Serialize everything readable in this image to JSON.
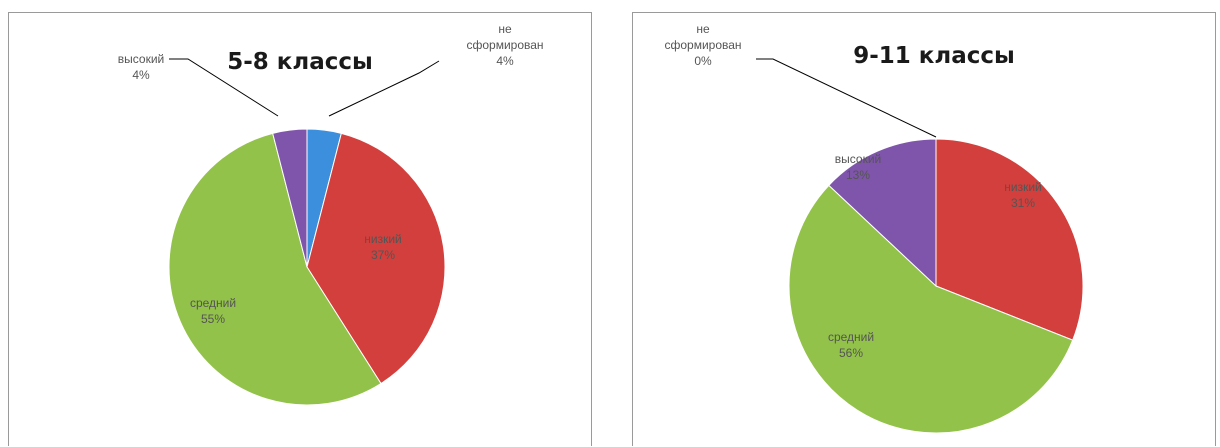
{
  "chart_data": [
    {
      "type": "pie",
      "title": "5-8 классы",
      "slices": [
        {
          "label": "не сформирован",
          "label_lines": [
            "не",
            "сформирован"
          ],
          "value": 4,
          "value_text": "4%",
          "color": "#3c8fdc"
        },
        {
          "label": "низкий",
          "label_lines": [
            "низкий"
          ],
          "value": 37,
          "value_text": "37%",
          "color": "#d23f3c"
        },
        {
          "label": "средний",
          "label_lines": [
            "средний"
          ],
          "value": 55,
          "value_text": "55%",
          "color": "#92c24a"
        },
        {
          "label": "высокий",
          "label_lines": [
            "высокий"
          ],
          "value": 4,
          "value_text": "4%",
          "color": "#7f55ab"
        }
      ]
    },
    {
      "type": "pie",
      "title": "9-11 классы",
      "slices": [
        {
          "label": "не сформирован",
          "label_lines": [
            "не",
            "сформирован"
          ],
          "value": 0,
          "value_text": "0%",
          "color": "#3c8fdc"
        },
        {
          "label": "низкий",
          "label_lines": [
            "низкий"
          ],
          "value": 31,
          "value_text": "31%",
          "color": "#d23f3c"
        },
        {
          "label": "средний",
          "label_lines": [
            "средний"
          ],
          "value": 56,
          "value_text": "56%",
          "color": "#92c24a"
        },
        {
          "label": "высокий",
          "label_lines": [
            "высокий"
          ],
          "value": 13,
          "value_text": "13%",
          "color": "#7f55ab"
        }
      ]
    }
  ]
}
